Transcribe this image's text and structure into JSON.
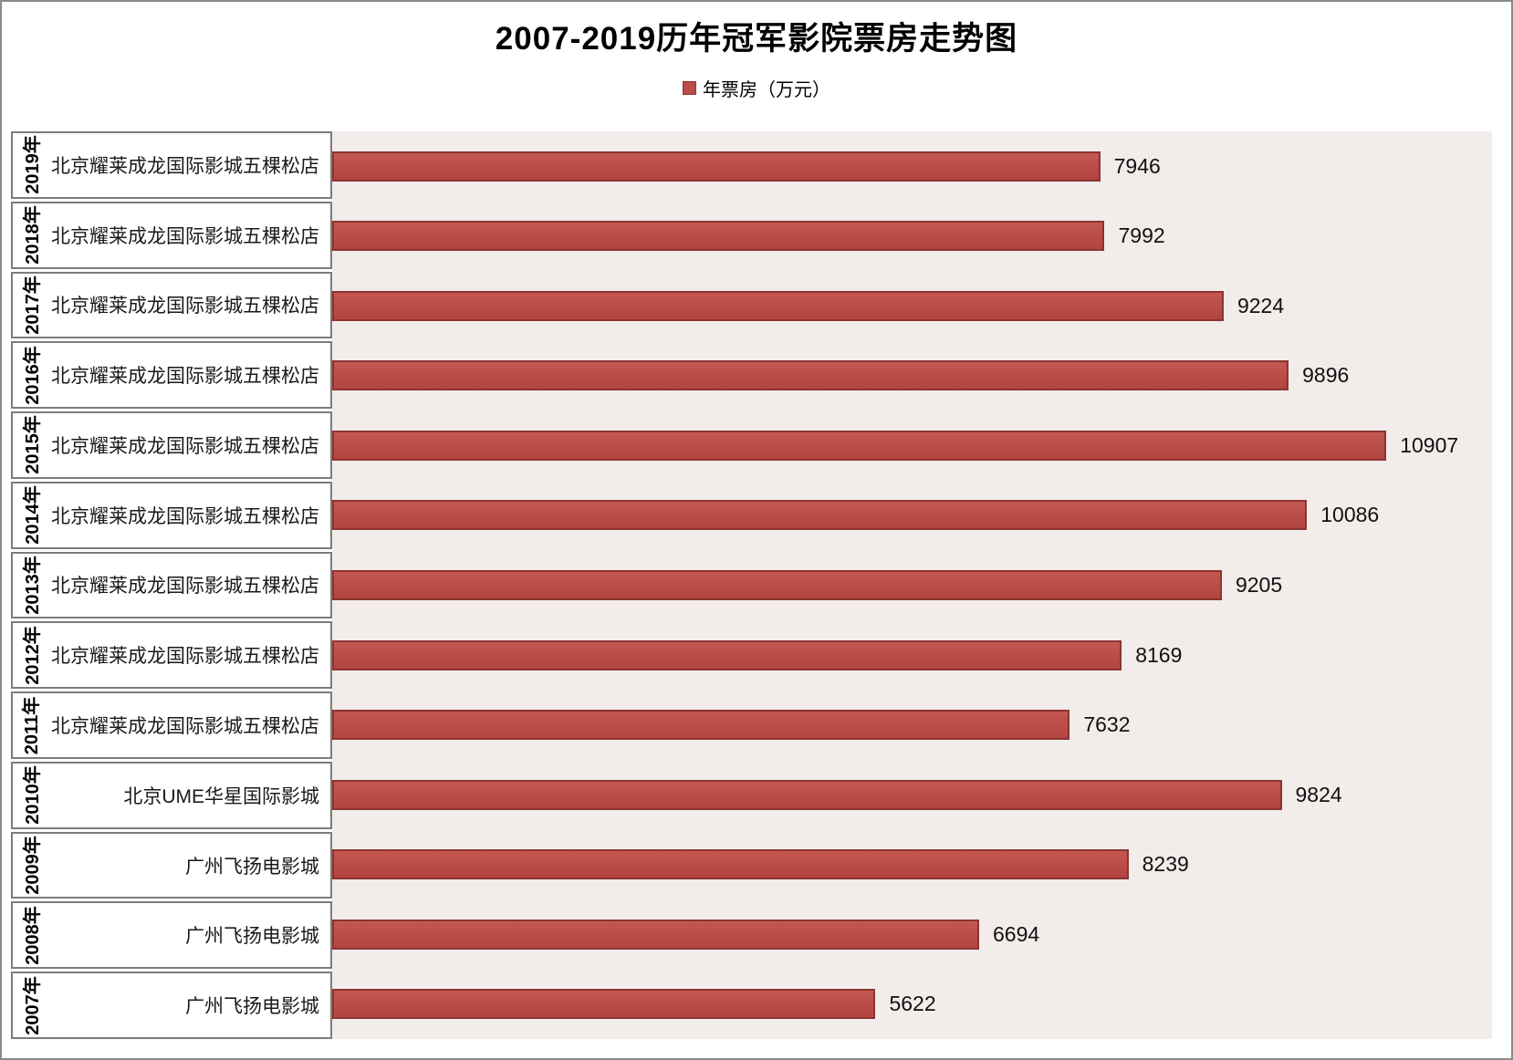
{
  "title": "2007-2019历年冠军影院票房走势图",
  "legend": {
    "label": "年票房（万元）"
  },
  "colors": {
    "bar_fill": "#BB4E4A",
    "bar_border": "#8C3431",
    "plot_background": "#F2ECEA",
    "label_cell_border": "#7C7C7C",
    "frame_border": "#8A8A8A"
  },
  "chart_data": {
    "type": "bar",
    "orientation": "horizontal",
    "title": "2007-2019历年冠军影院票房走势图",
    "series_name": "年票房（万元）",
    "legend_position": "top",
    "xlim": [
      0,
      12000
    ],
    "value_axis_visible": false,
    "grid": false,
    "categories": [
      "2019年",
      "2018年",
      "2017年",
      "2016年",
      "2015年",
      "2014年",
      "2013年",
      "2012年",
      "2011年",
      "2010年",
      "2009年",
      "2008年",
      "2007年"
    ],
    "cinemas": [
      "北京耀莱成龙国际影城五棵松店",
      "北京耀莱成龙国际影城五棵松店",
      "北京耀莱成龙国际影城五棵松店",
      "北京耀莱成龙国际影城五棵松店",
      "北京耀莱成龙国际影城五棵松店",
      "北京耀莱成龙国际影城五棵松店",
      "北京耀莱成龙国际影城五棵松店",
      "北京耀莱成龙国际影城五棵松店",
      "北京耀莱成龙国际影城五棵松店",
      "北京UME华星国际影城",
      "广州飞扬电影城",
      "广州飞扬电影城",
      "广州飞扬电影城"
    ],
    "values": [
      7946,
      7992,
      9224,
      9896,
      10907,
      10086,
      9205,
      8169,
      7632,
      9824,
      8239,
      6694,
      5622
    ]
  }
}
